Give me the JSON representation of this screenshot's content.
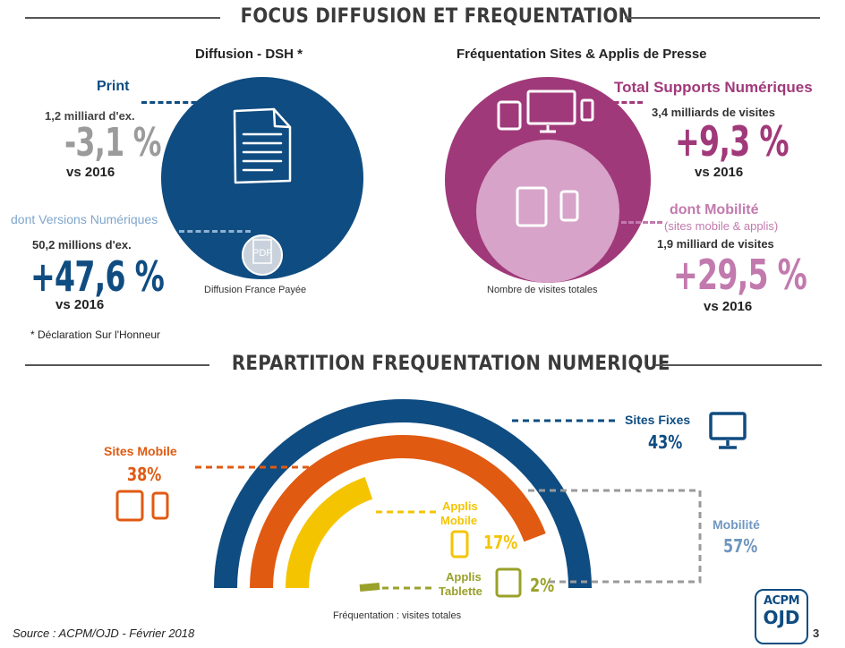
{
  "section1": {
    "title": "FOCUS DIFFUSION ET FREQUENTATION"
  },
  "diffusion": {
    "title": "Diffusion - DSH *",
    "caption": "Diffusion France Payée",
    "footnote": "* Déclaration Sur l'Honneur",
    "pdf_label": "PDF",
    "print": {
      "label": "Print",
      "volume": "1,2 milliard d'ex.",
      "change": "-3,1 %",
      "vs": "vs 2016",
      "color": "#9b9b9b"
    },
    "numeric": {
      "label": "dont Versions Numériques",
      "volume": "50,2 millions d'ex.",
      "change": "+47,6 %",
      "vs": "vs 2016",
      "color": "#0f4c81"
    }
  },
  "frequentation": {
    "title": "Fréquentation Sites & Applis de Presse",
    "caption": "Nombre de visites totales",
    "total": {
      "label": "Total Supports Numériques",
      "volume": "3,4 milliards de visites",
      "change": "+9,3 %",
      "vs": "vs 2016",
      "color": "#a0397a"
    },
    "mobile": {
      "label": "dont Mobilité",
      "sublabel": "(sites mobile & applis)",
      "volume": "1,9 milliard de visites",
      "change": "+29,5 %",
      "vs": "vs 2016",
      "color": "#c27aae"
    }
  },
  "section2": {
    "title": "REPARTITION FREQUENTATION NUMERIQUE"
  },
  "chart_data": {
    "type": "pie",
    "title": "",
    "caption": "Fréquentation : visites totales",
    "series": [
      {
        "name": "Sites Fixes",
        "value": 43,
        "label": "43%",
        "color": "#0f4c81"
      },
      {
        "name": "Sites Mobile",
        "value": 38,
        "label": "38%",
        "color": "#e05a12"
      },
      {
        "name": "Applis Mobile",
        "value": 17,
        "label": "17%",
        "color": "#f5c400"
      },
      {
        "name": "Applis Tablette",
        "value": 2,
        "label": "2%",
        "color": "#9aa12a"
      }
    ],
    "group": {
      "name": "Mobilité",
      "value": 57,
      "label": "57%",
      "color": "#6f97bf"
    }
  },
  "labels": {
    "sites_fixes": "Sites Fixes",
    "sites_mobile": "Sites Mobile",
    "applis_mobile_1": "Applis",
    "applis_mobile_2": "Mobile",
    "applis_tablette_1": "Applis",
    "applis_tablette_2": "Tablette",
    "mobilite": "Mobilité"
  },
  "footer": {
    "source": "Source : ACPM/OJD - Février 2018",
    "logo_top": "ACPM",
    "logo_bottom": "OJD",
    "page": "3"
  }
}
